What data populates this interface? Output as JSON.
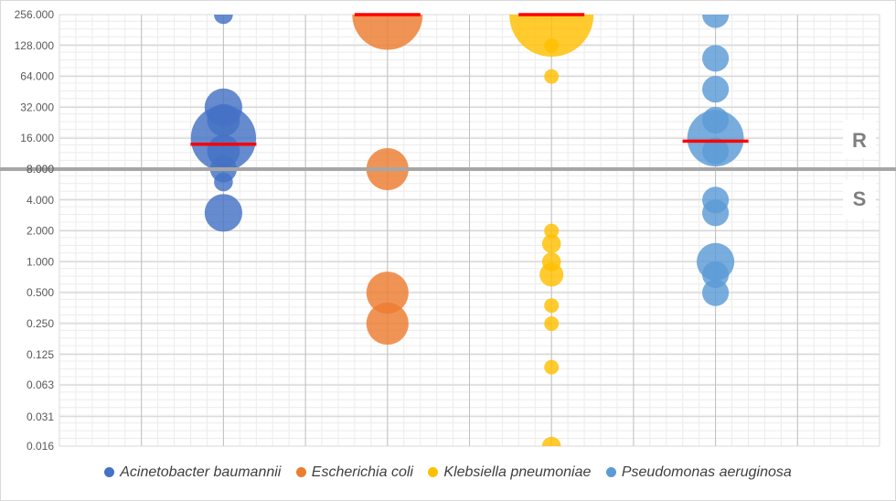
{
  "chart_data": {
    "type": "scatter",
    "subtype": "bubble",
    "title": "",
    "xlabel": "",
    "ylabel": "",
    "y_scale": "log2",
    "ylim": [
      0.016,
      256
    ],
    "xlim": [
      0,
      10
    ],
    "y_ticks": [
      256,
      128,
      64,
      32,
      16,
      8,
      4,
      2,
      1,
      0.5,
      0.25,
      0.125,
      0.063,
      0.031,
      0.016
    ],
    "y_tick_labels": [
      "256.000",
      "128.000",
      "64.000",
      "32.000",
      "16.000",
      "8.000",
      "4.000",
      "2.000",
      "1.000",
      "0.500",
      "0.250",
      "0.125",
      "0.063",
      "0.031",
      "0.016"
    ],
    "grid": true,
    "legend_position": "bottom",
    "breakpoint": {
      "value": 8,
      "color": "#a6a6a6",
      "labels": {
        "above": "R",
        "below": "S"
      }
    },
    "median_line_color": "#ff0000",
    "series": [
      {
        "name": "Acinetobacter baumannii",
        "color": "#4472c4",
        "x": 2,
        "median": 14,
        "points": [
          {
            "y": 256,
            "size": 1
          },
          {
            "y": 32,
            "size": 4
          },
          {
            "y": 24,
            "size": 3
          },
          {
            "y": 16,
            "size": 12
          },
          {
            "y": 12,
            "size": 3
          },
          {
            "y": 8,
            "size": 2
          },
          {
            "y": 6,
            "size": 1
          },
          {
            "y": 3,
            "size": 4
          }
        ]
      },
      {
        "name": "Escherichia coli",
        "color": "#ed7d31",
        "x": 4,
        "median": 256,
        "points": [
          {
            "y": 256,
            "size": 14
          },
          {
            "y": 8,
            "size": 5
          },
          {
            "y": 0.5,
            "size": 5
          },
          {
            "y": 0.25,
            "size": 5
          }
        ]
      },
      {
        "name": "Klebsiella pneumoniae",
        "color": "#ffc000",
        "x": 6,
        "median": 256,
        "points": [
          {
            "y": 256,
            "size": 20
          },
          {
            "y": 128,
            "size": 0.6
          },
          {
            "y": 64,
            "size": 0.6
          },
          {
            "y": 2,
            "size": 0.6
          },
          {
            "y": 1.5,
            "size": 1
          },
          {
            "y": 1,
            "size": 1
          },
          {
            "y": 0.75,
            "size": 1.6
          },
          {
            "y": 0.375,
            "size": 0.6
          },
          {
            "y": 0.25,
            "size": 0.6
          },
          {
            "y": 0.094,
            "size": 0.6
          },
          {
            "y": 0.016,
            "size": 1
          }
        ]
      },
      {
        "name": "Pseudomonas aeruginosa",
        "color": "#5b9bd5",
        "x": 8,
        "median": 15,
        "points": [
          {
            "y": 256,
            "size": 2
          },
          {
            "y": 96,
            "size": 2
          },
          {
            "y": 48,
            "size": 2
          },
          {
            "y": 24,
            "size": 2
          },
          {
            "y": 16,
            "size": 9
          },
          {
            "y": 12,
            "size": 2
          },
          {
            "y": 4,
            "size": 2
          },
          {
            "y": 3,
            "size": 2
          },
          {
            "y": 1,
            "size": 4
          },
          {
            "y": 0.75,
            "size": 2
          },
          {
            "y": 0.5,
            "size": 2
          }
        ]
      }
    ]
  }
}
